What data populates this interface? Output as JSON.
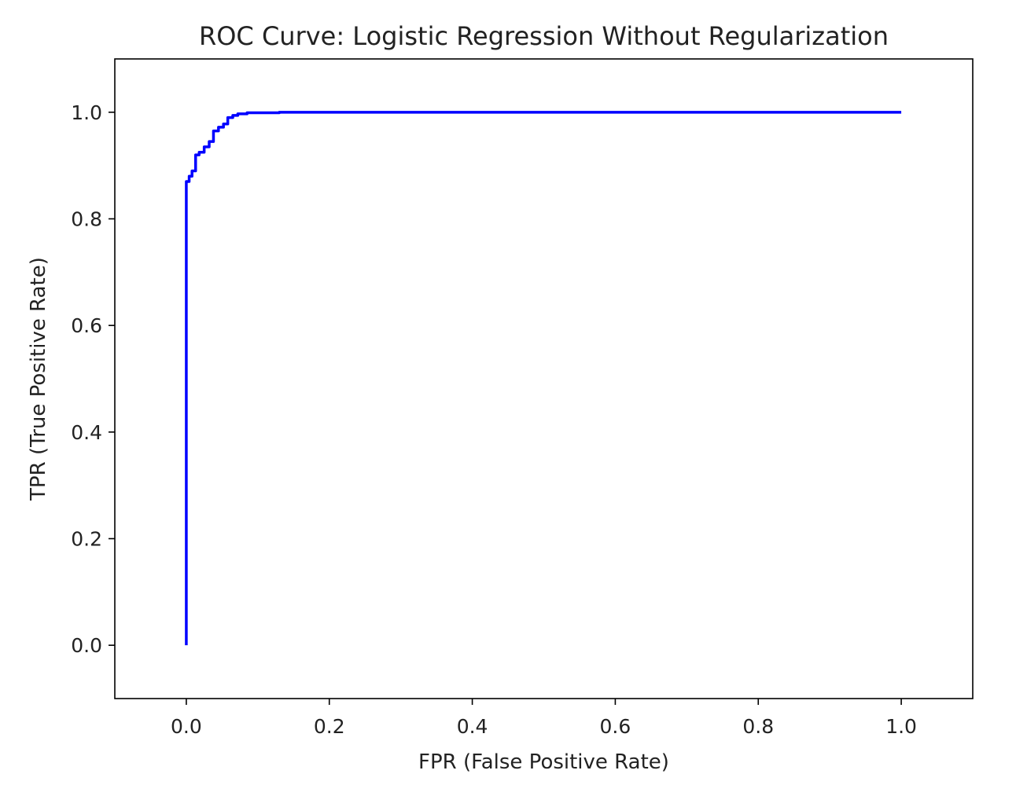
{
  "chart_data": {
    "type": "line",
    "title": "ROC Curve: Logistic Regression Without Regularization",
    "xlabel": "FPR (False Positive Rate)",
    "ylabel": "TPR (True Positive Rate)",
    "xlim": [
      -0.1,
      1.1
    ],
    "ylim": [
      -0.1,
      1.1
    ],
    "xticks": [
      0.0,
      0.2,
      0.4,
      0.6,
      0.8,
      1.0
    ],
    "yticks": [
      0.0,
      0.2,
      0.4,
      0.6,
      0.8,
      1.0
    ],
    "xtick_labels": [
      "0.0",
      "0.2",
      "0.4",
      "0.6",
      "0.8",
      "1.0"
    ],
    "ytick_labels": [
      "0.0",
      "0.2",
      "0.4",
      "0.6",
      "0.8",
      "1.0"
    ],
    "grid": false,
    "legend": false,
    "series": [
      {
        "color": "#0000ff",
        "x": [
          0.0,
          0.0,
          0.0,
          0.004,
          0.004,
          0.008,
          0.008,
          0.013,
          0.013,
          0.018,
          0.018,
          0.025,
          0.025,
          0.032,
          0.032,
          0.038,
          0.038,
          0.045,
          0.045,
          0.052,
          0.052,
          0.058,
          0.058,
          0.065,
          0.065,
          0.072,
          0.072,
          0.085,
          0.085,
          0.13,
          0.13,
          1.0
        ],
        "y": [
          0.0,
          0.86,
          0.87,
          0.87,
          0.88,
          0.88,
          0.89,
          0.89,
          0.92,
          0.92,
          0.925,
          0.925,
          0.935,
          0.935,
          0.945,
          0.945,
          0.965,
          0.965,
          0.972,
          0.972,
          0.978,
          0.978,
          0.99,
          0.99,
          0.994,
          0.994,
          0.997,
          0.997,
          0.999,
          0.999,
          1.0,
          1.0
        ]
      }
    ]
  }
}
